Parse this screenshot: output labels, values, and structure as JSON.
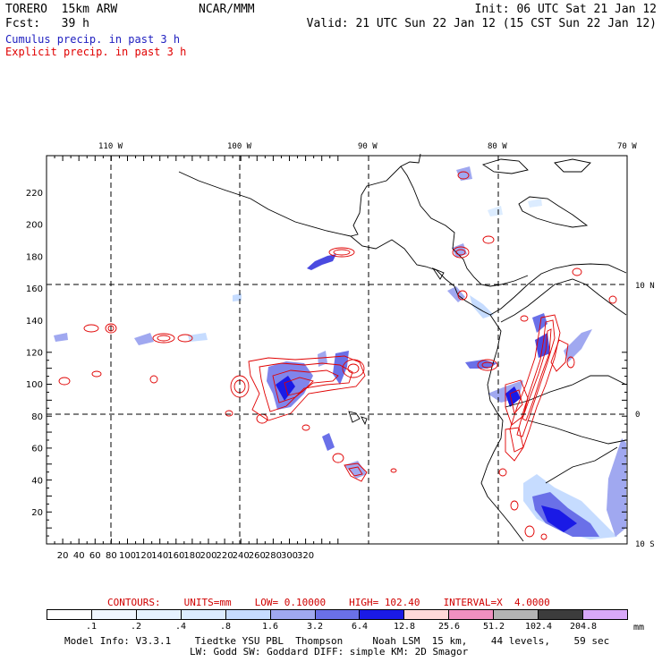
{
  "header": {
    "model_name": "TORERO  15km ARW",
    "center": "NCAR/MMM",
    "init": "Init: 06 UTC Sat 21 Jan 12",
    "fcst": "Fcst:   39 h",
    "valid": "Valid: 21 UTC Sun 22 Jan 12 (15 CST Sun 22 Jan 12)"
  },
  "fields": [
    {
      "label": "Cumulus precip. in past 3 h",
      "color": "#2020c0"
    },
    {
      "label": "Explicit precip. in past 3 h",
      "color": "#e00000"
    }
  ],
  "map": {
    "x_ticks": [
      "20",
      "40",
      "60",
      "80",
      "100",
      "120",
      "140",
      "160",
      "180",
      "200",
      "220",
      "240",
      "260",
      "280",
      "300",
      "320"
    ],
    "y_ticks": [
      "20",
      "40",
      "60",
      "80",
      "100",
      "120",
      "140",
      "160",
      "180",
      "200",
      "220"
    ],
    "lon_labels": [
      "110 W",
      "100 W",
      "90 W",
      "80 W",
      "70 W"
    ],
    "lat_labels": [
      "10 N",
      "0",
      "10 S"
    ]
  },
  "contours": {
    "label": "CONTOURS:",
    "units": "UNITS=mm",
    "low": "LOW= 0.10000",
    "high": "HIGH= 102.40",
    "interval": "INTERVAL=X  4.0000"
  },
  "colorbar": {
    "colors": [
      "#ffffff",
      "#f0f6ff",
      "#e6f2ff",
      "#dcecff",
      "#c6dcff",
      "#a0a8f0",
      "#6a70e8",
      "#1a1ae6",
      "#ffd8d8",
      "#f090c0",
      "#b4b4b4",
      "#3c3c3c",
      "#d8a8f8"
    ],
    "labels": [
      ".1",
      ".2",
      ".4",
      ".8",
      "1.6",
      "3.2",
      "6.4",
      "12.8",
      "25.6",
      "51.2",
      "102.4",
      "204.8"
    ],
    "unit": "mm"
  },
  "model_info": {
    "line1": "Model Info: V3.3.1    Tiedtke YSU PBL  Thompson     Noah LSM  15 km,    44 levels,    59 sec",
    "line2": "LW: Godd SW: Goddard DIFF: simple KM: 2D Smagor"
  },
  "colors": {
    "convective": "#3a3ae0",
    "explicit": "#e00000",
    "coast": "#000000"
  }
}
